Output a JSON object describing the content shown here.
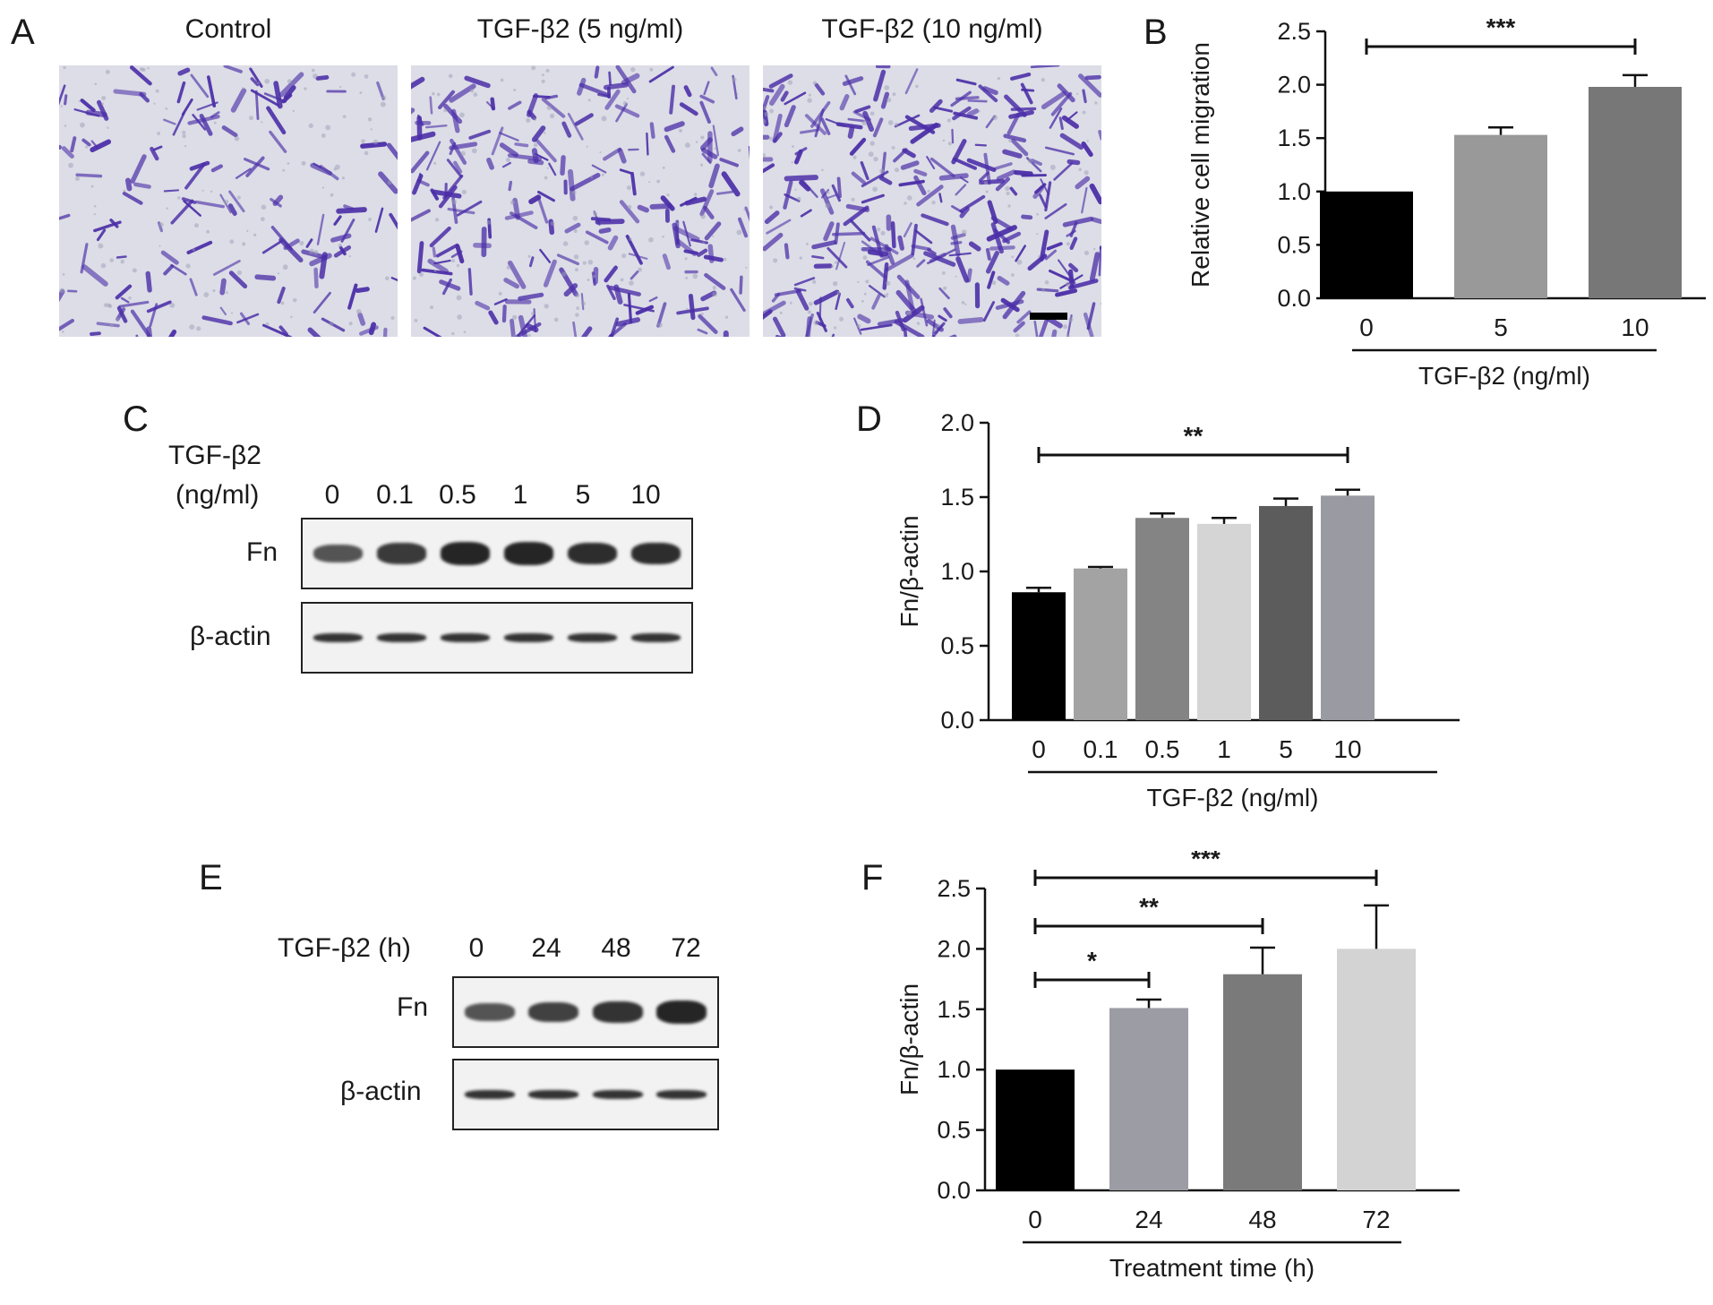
{
  "panels": {
    "a": {
      "letter": "A",
      "images": [
        {
          "caption": "Control",
          "density": 0.55
        },
        {
          "caption": "TGF-β2 (5 ng/ml)",
          "density": 0.8
        },
        {
          "caption": "TGF-β2 (10 ng/ml)",
          "density": 1.05
        }
      ],
      "stain_color": "#4b2ea8"
    },
    "b": {
      "letter": "B"
    },
    "c": {
      "letter": "C",
      "condition_label_line1": "TGF-β2",
      "condition_label_line2": "(ng/ml)",
      "lanes": [
        "0",
        "0.1",
        "0.5",
        "1",
        "5",
        "10"
      ],
      "rows": [
        {
          "label": "Fn",
          "band_intensity": [
            0.6,
            0.8,
            0.95,
            0.95,
            0.9,
            0.9
          ]
        },
        {
          "label": "β-actin",
          "band_intensity": [
            0.85,
            0.85,
            0.85,
            0.85,
            0.85,
            0.85
          ]
        }
      ]
    },
    "d": {
      "letter": "D"
    },
    "e": {
      "letter": "E",
      "condition_label": "TGF-β2 (h)",
      "lanes": [
        "0",
        "24",
        "48",
        "72"
      ],
      "rows": [
        {
          "label": "Fn",
          "band_intensity": [
            0.6,
            0.75,
            0.85,
            0.95
          ]
        },
        {
          "label": "β-actin",
          "band_intensity": [
            0.85,
            0.85,
            0.85,
            0.85
          ]
        }
      ]
    },
    "f": {
      "letter": "F"
    }
  },
  "chart_data": [
    {
      "panel": "B",
      "type": "bar",
      "categories": [
        "0",
        "5",
        "10"
      ],
      "values": [
        1.0,
        1.53,
        1.98
      ],
      "errors": [
        0,
        0.07,
        0.11
      ],
      "colors": [
        "#000000",
        "#999999",
        "#777777"
      ],
      "ylabel": "Relative cell migration",
      "xlabel": "TGF-β2 (ng/ml)",
      "ylim": [
        0,
        2.5
      ],
      "yticks": [
        "0.0",
        "0.5",
        "1.0",
        "1.5",
        "2.0",
        "2.5"
      ],
      "significance": [
        {
          "from": 0,
          "to": 2,
          "label": "***"
        }
      ]
    },
    {
      "panel": "D",
      "type": "bar",
      "categories": [
        "0",
        "0.1",
        "0.5",
        "1",
        "5",
        "10"
      ],
      "values": [
        0.86,
        1.02,
        1.36,
        1.32,
        1.44,
        1.51
      ],
      "errors": [
        0.03,
        0.01,
        0.03,
        0.04,
        0.05,
        0.04
      ],
      "colors": [
        "#000000",
        "#a3a3a3",
        "#848484",
        "#d5d5d5",
        "#5c5c5c",
        "#9a9aa2"
      ],
      "ylabel": "Fn/β-actin",
      "xlabel": "TGF-β2 (ng/ml)",
      "ylim": [
        0,
        2.0
      ],
      "yticks": [
        "0.0",
        "0.5",
        "1.0",
        "1.5",
        "2.0"
      ],
      "significance": [
        {
          "from": 0,
          "to": 5,
          "label": "**"
        }
      ]
    },
    {
      "panel": "F",
      "type": "bar",
      "categories": [
        "0",
        "24",
        "48",
        "72"
      ],
      "values": [
        1.0,
        1.51,
        1.79,
        2.0
      ],
      "errors": [
        0,
        0.07,
        0.22,
        0.36
      ],
      "colors": [
        "#000000",
        "#9c9ca4",
        "#7a7a7a",
        "#d3d3d3"
      ],
      "ylabel": "Fn/β-actin",
      "xlabel": "Treatment time (h)",
      "ylim": [
        0,
        2.5
      ],
      "yticks": [
        "0.0",
        "0.5",
        "1.0",
        "1.5",
        "2.0",
        "2.5"
      ],
      "significance": [
        {
          "from": 0,
          "to": 1,
          "label": "*"
        },
        {
          "from": 0,
          "to": 2,
          "label": "**"
        },
        {
          "from": 0,
          "to": 3,
          "label": "***"
        }
      ]
    }
  ]
}
